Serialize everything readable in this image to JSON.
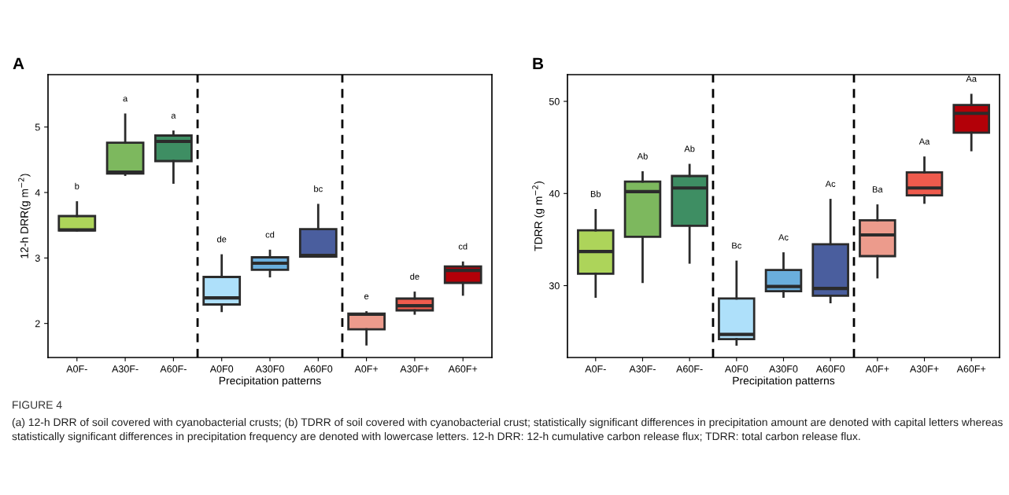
{
  "chart_data": [
    {
      "type": "box",
      "title": "A",
      "xlabel": "Precipitation patterns",
      "ylabel": "12-h DRR(g m$^{−2}$)",
      "categories": [
        "A0F-",
        "A30F-",
        "A60F-",
        "A0F0",
        "A30F0",
        "A60F0",
        "A0F+",
        "A30F+",
        "A60F+"
      ],
      "colors": [
        "#add45a",
        "#7db85e",
        "#3e8e63",
        "#aee0fa",
        "#6aaedc",
        "#4a5e9e",
        "#ec9b8c",
        "#ef5b4d",
        "#b30008"
      ],
      "boxes": [
        {
          "low": 3.42,
          "q1": 3.42,
          "median": 3.43,
          "q3": 3.64,
          "high": 3.85
        },
        {
          "low": 4.27,
          "q1": 4.29,
          "median": 4.31,
          "q3": 4.76,
          "high": 5.19
        },
        {
          "low": 4.15,
          "q1": 4.48,
          "median": 4.78,
          "q3": 4.87,
          "high": 4.93
        },
        {
          "low": 2.19,
          "q1": 2.29,
          "median": 2.39,
          "q3": 2.71,
          "high": 3.04
        },
        {
          "low": 2.72,
          "q1": 2.82,
          "median": 2.92,
          "q3": 3.01,
          "high": 3.11
        },
        {
          "low": 3.02,
          "q1": 3.02,
          "median": 3.04,
          "q3": 3.44,
          "high": 3.81
        },
        {
          "low": 1.68,
          "q1": 1.91,
          "median": 2.14,
          "q3": 2.15,
          "high": 2.17
        },
        {
          "low": 2.15,
          "q1": 2.2,
          "median": 2.27,
          "q3": 2.38,
          "high": 2.47
        },
        {
          "low": 2.44,
          "q1": 2.62,
          "median": 2.81,
          "q3": 2.87,
          "high": 2.93
        }
      ],
      "ylim": [
        1.48,
        5.8
      ],
      "yticks": [
        2,
        3,
        4,
        5
      ],
      "grid": false,
      "annotations": [
        "b",
        "a",
        "a",
        "de",
        "cd",
        "bc",
        "e",
        "de",
        "cd",
        "FIGURE 4",
        "(a) 12-h DRR of soil covered with cyanobacterial crusts; (b) TDRR of soil covered with cyanobacterial crust; statistically significant differences in precipitation amount are denoted with capital letters whereas statistically significant differences in precipitation frequency are denoted with lowercase letters. 12-h DRR: 12-h cumulative carbon release flux; TDRR: total carbon release flux."
      ]
    },
    {
      "type": "box",
      "title": "B",
      "xlabel": "Precipitation patterns",
      "ylabel": "TDRR (g m$^{−2}$)",
      "categories": [
        "A0F-",
        "A30F-",
        "A60F-",
        "A0F0",
        "A30F0",
        "A60F0",
        "A0F+",
        "A30F+",
        "A60F+"
      ],
      "colors": [
        "#add45a",
        "#7db85e",
        "#3e8e63",
        "#aee0fa",
        "#6aaedc",
        "#4a5e9e",
        "#ec9b8c",
        "#ef5b4d",
        "#b30008"
      ],
      "boxes": [
        {
          "low": 28.8,
          "q1": 31.3,
          "median": 33.7,
          "q3": 36.0,
          "high": 38.2
        },
        {
          "low": 30.4,
          "q1": 35.3,
          "median": 40.2,
          "q3": 41.3,
          "high": 42.3
        },
        {
          "low": 32.5,
          "q1": 36.5,
          "median": 40.6,
          "q3": 41.9,
          "high": 43.1
        },
        {
          "low": 23.6,
          "q1": 24.2,
          "median": 24.7,
          "q3": 28.6,
          "high": 32.6
        },
        {
          "low": 28.8,
          "q1": 29.4,
          "median": 29.9,
          "q3": 31.7,
          "high": 33.5
        },
        {
          "low": 28.2,
          "q1": 28.9,
          "median": 29.7,
          "q3": 34.5,
          "high": 39.3
        },
        {
          "low": 30.9,
          "q1": 33.2,
          "median": 35.5,
          "q3": 37.1,
          "high": 38.7
        },
        {
          "low": 39.0,
          "q1": 39.8,
          "median": 40.6,
          "q3": 42.3,
          "high": 43.9
        },
        {
          "low": 44.7,
          "q1": 46.6,
          "median": 48.7,
          "q3": 49.6,
          "high": 50.7
        }
      ],
      "ylim": [
        22.2,
        52.9
      ],
      "yticks": [
        30,
        40,
        50
      ],
      "grid": false,
      "annotations": [
        "Bb",
        "Ab",
        "Ab",
        "Bc",
        "Ac",
        "Ac",
        "Ba",
        "Aa",
        "Aa"
      ]
    }
  ]
}
